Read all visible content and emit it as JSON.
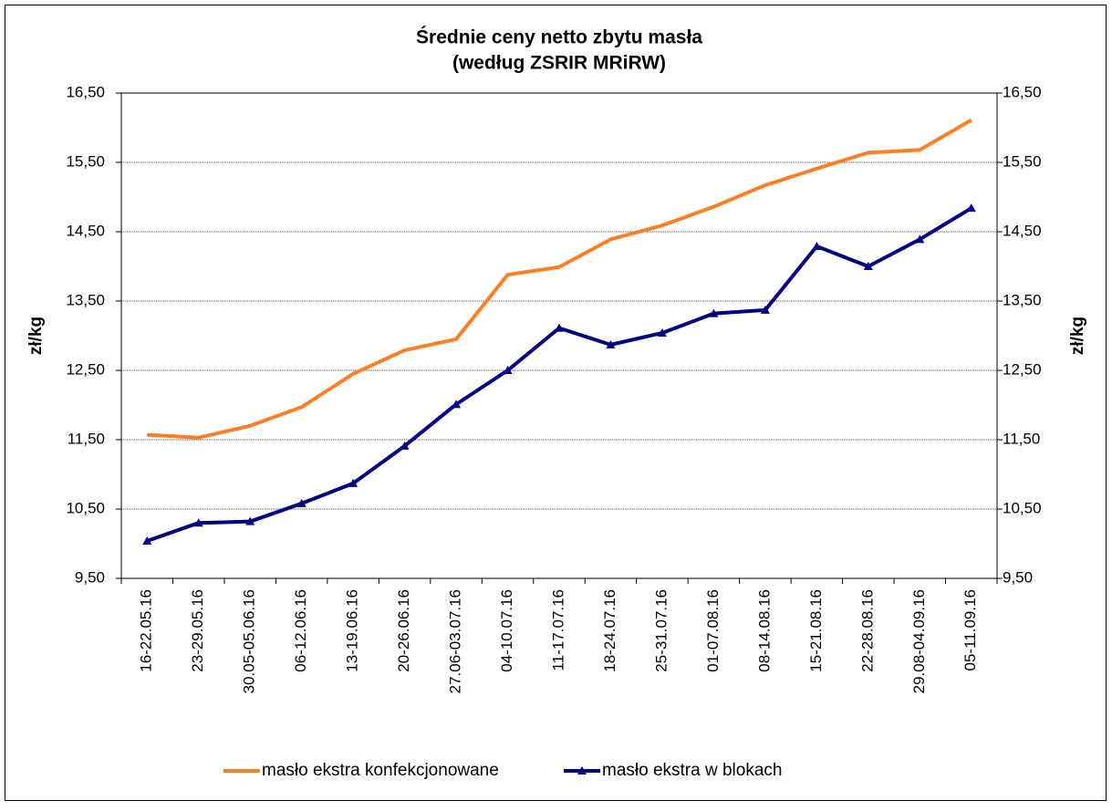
{
  "chart_data": {
    "type": "line",
    "title": "Średnie ceny netto zbytu masła",
    "subtitle": "(według ZSRIR MRiRW)",
    "ylabel": "zł/kg",
    "y2label": "zł/kg",
    "categories": [
      "16-22.05.16",
      "23-29.05.16",
      "30.05-05.06.16",
      "06-12.06.16",
      "13-19.06.16",
      "20-26.06.16",
      "27.06-03.07.16",
      "04-10.07.16",
      "11-17.07.16",
      "18-24.07.16",
      "25-31.07.16",
      "01-07.08.16",
      "08-14.08.16",
      "15-21.08.16",
      "22-28.08.16",
      "29.08-04.09.16",
      "05-11.09.16"
    ],
    "series": [
      {
        "name": "masło ekstra konfekcjonowane",
        "color": "#ff7f27",
        "marker": "none",
        "values": [
          11.57,
          11.53,
          11.7,
          11.97,
          12.45,
          12.79,
          12.95,
          13.88,
          13.99,
          14.39,
          14.59,
          14.86,
          15.17,
          15.41,
          15.64,
          15.68,
          16.11
        ]
      },
      {
        "name": "masło ekstra w blokach",
        "color": "#000080",
        "marker": "triangle",
        "values": [
          10.04,
          10.3,
          10.32,
          10.58,
          10.87,
          11.41,
          12.01,
          12.5,
          13.11,
          12.87,
          13.04,
          13.32,
          13.37,
          14.29,
          14.0,
          14.39,
          14.84
        ]
      }
    ],
    "ylim": [
      9.5,
      16.5
    ],
    "yticks": [
      {
        "value": 9.5,
        "label": "9,50"
      },
      {
        "value": 10.5,
        "label": "10,50"
      },
      {
        "value": 11.5,
        "label": "11,50"
      },
      {
        "value": 12.5,
        "label": "12,50"
      },
      {
        "value": 13.5,
        "label": "13,50"
      },
      {
        "value": 14.5,
        "label": "14,50"
      },
      {
        "value": 15.5,
        "label": "15,50"
      },
      {
        "value": 16.5,
        "label": "16,50"
      }
    ],
    "y2lim": [
      9.5,
      16.5
    ],
    "y2ticks": [
      {
        "value": 9.5,
        "label": "9,50"
      },
      {
        "value": 10.5,
        "label": "10,50"
      },
      {
        "value": 11.5,
        "label": "11,50"
      },
      {
        "value": 12.5,
        "label": "12,50"
      },
      {
        "value": 13.5,
        "label": "13,50"
      },
      {
        "value": 14.5,
        "label": "14,50"
      },
      {
        "value": 15.5,
        "label": "15,50"
      },
      {
        "value": 16.5,
        "label": "16,50"
      }
    ],
    "grid": true,
    "legend": "bottom"
  }
}
